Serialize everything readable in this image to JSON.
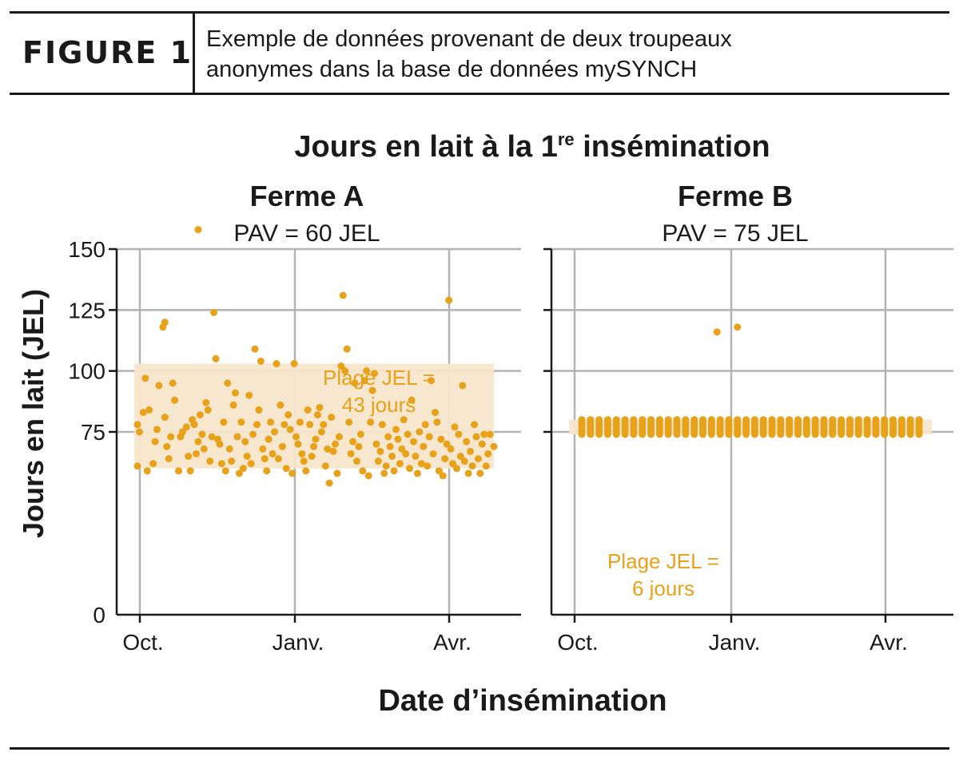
{
  "header": {
    "figure_label": "FIGURE 1",
    "caption_line1": "Exemple de données provenant de deux troupeaux",
    "caption_line2": "anonymes dans la base de données mySYNCH"
  },
  "chart_data": {
    "type": "scatter",
    "title_main": "Jours en lait à la 1",
    "title_sup": "re",
    "title_end": " insémination",
    "ylabel": "Jours en lait (JEL)",
    "xlabel": "Date d’insémination",
    "ylim": [
      0,
      150
    ],
    "yticks": [
      0,
      25,
      50,
      75,
      100,
      125,
      150
    ],
    "ytick_labels": [
      "0",
      "",
      "",
      "75",
      "100",
      "125",
      "150"
    ],
    "x_ticks": [
      "Oct.",
      "Janv.",
      "Avr."
    ],
    "grid": true,
    "point_color": "#e8a21a",
    "band_color": "#f7e6cc",
    "panels": [
      {
        "name": "Ferme A",
        "subtitle": "PAV = 60 JEL",
        "band": [
          60,
          103
        ],
        "annotation_line1": "Plage JEL =",
        "annotation_line2": "43 jours",
        "points": [
          [
            0.0,
            61
          ],
          [
            0.0,
            78
          ],
          [
            0.1,
            75
          ],
          [
            0.3,
            83
          ],
          [
            0.4,
            97
          ],
          [
            0.6,
            84
          ],
          [
            0.9,
            71
          ],
          [
            0.8,
            62
          ],
          [
            0.5,
            59
          ],
          [
            1.0,
            76
          ],
          [
            1.1,
            94
          ],
          [
            1.3,
            118
          ],
          [
            1.4,
            120
          ],
          [
            1.4,
            81
          ],
          [
            1.5,
            69
          ],
          [
            1.6,
            64
          ],
          [
            1.7,
            73
          ],
          [
            1.8,
            95
          ],
          [
            1.9,
            88
          ],
          [
            2.1,
            59
          ],
          [
            2.2,
            73
          ],
          [
            2.3,
            75
          ],
          [
            2.5,
            77
          ],
          [
            2.6,
            65
          ],
          [
            2.7,
            59
          ],
          [
            2.8,
            80
          ],
          [
            2.9,
            78
          ],
          [
            3.0,
            66
          ],
          [
            3.1,
            158
          ],
          [
            3.1,
            71
          ],
          [
            3.2,
            82
          ],
          [
            3.3,
            74
          ],
          [
            3.4,
            68
          ],
          [
            3.5,
            87
          ],
          [
            3.6,
            84
          ],
          [
            3.7,
            63
          ],
          [
            3.8,
            73
          ],
          [
            3.9,
            124
          ],
          [
            4.0,
            105
          ],
          [
            4.1,
            72
          ],
          [
            4.2,
            70
          ],
          [
            4.3,
            62
          ],
          [
            4.4,
            79
          ],
          [
            4.5,
            59
          ],
          [
            4.6,
            95
          ],
          [
            4.7,
            68
          ],
          [
            4.8,
            63
          ],
          [
            4.9,
            86
          ],
          [
            5.0,
            91
          ],
          [
            5.1,
            73
          ],
          [
            5.2,
            58
          ],
          [
            5.3,
            79
          ],
          [
            5.4,
            60
          ],
          [
            5.5,
            71
          ],
          [
            5.6,
            65
          ],
          [
            5.7,
            90
          ],
          [
            5.8,
            62
          ],
          [
            5.9,
            74
          ],
          [
            6.0,
            109
          ],
          [
            6.1,
            78
          ],
          [
            6.2,
            84
          ],
          [
            6.3,
            104
          ],
          [
            6.4,
            68
          ],
          [
            6.5,
            64
          ],
          [
            6.6,
            59
          ],
          [
            6.7,
            72
          ],
          [
            6.8,
            79
          ],
          [
            6.9,
            66
          ],
          [
            7.0,
            75
          ],
          [
            7.1,
            103
          ],
          [
            7.2,
            64
          ],
          [
            7.3,
            86
          ],
          [
            7.4,
            69
          ],
          [
            7.5,
            78
          ],
          [
            7.6,
            60
          ],
          [
            7.7,
            82
          ],
          [
            7.8,
            76
          ],
          [
            7.9,
            58
          ],
          [
            8.0,
            103
          ],
          [
            8.1,
            73
          ],
          [
            8.2,
            70
          ],
          [
            8.3,
            79
          ],
          [
            8.4,
            66
          ],
          [
            8.5,
            63
          ],
          [
            8.6,
            59
          ],
          [
            8.7,
            84
          ],
          [
            8.8,
            78
          ],
          [
            8.9,
            65
          ],
          [
            9.0,
            69
          ],
          [
            9.1,
            72
          ],
          [
            9.2,
            82
          ],
          [
            9.3,
            85
          ],
          [
            9.4,
            75
          ],
          [
            9.5,
            78
          ],
          [
            9.6,
            61
          ],
          [
            9.7,
            68
          ],
          [
            9.8,
            54
          ],
          [
            9.9,
            81
          ],
          [
            10.0,
            67
          ],
          [
            10.1,
            70
          ],
          [
            10.2,
            58
          ],
          [
            10.3,
            73
          ],
          [
            10.4,
            102
          ],
          [
            10.5,
            131
          ],
          [
            10.6,
            100
          ],
          [
            10.7,
            109
          ],
          [
            10.8,
            79
          ],
          [
            10.9,
            66
          ],
          [
            11.0,
            71
          ],
          [
            11.1,
            95
          ],
          [
            11.2,
            63
          ],
          [
            11.3,
            69
          ],
          [
            11.4,
            74
          ],
          [
            11.5,
            59
          ],
          [
            11.6,
            96
          ],
          [
            11.7,
            100
          ],
          [
            11.8,
            57
          ],
          [
            11.9,
            79
          ],
          [
            12.0,
            92
          ],
          [
            12.1,
            99
          ],
          [
            12.2,
            70
          ],
          [
            12.3,
            63
          ],
          [
            12.4,
            67
          ],
          [
            12.5,
            78
          ],
          [
            12.6,
            58
          ],
          [
            12.7,
            61
          ],
          [
            12.8,
            73
          ],
          [
            12.9,
            69
          ],
          [
            13.0,
            65
          ],
          [
            13.1,
            59
          ],
          [
            13.2,
            76
          ],
          [
            13.3,
            72
          ],
          [
            13.4,
            62
          ],
          [
            13.5,
            68
          ],
          [
            13.6,
            80
          ],
          [
            13.7,
            66
          ],
          [
            13.8,
            74
          ],
          [
            13.9,
            60
          ],
          [
            14.0,
            88
          ],
          [
            14.1,
            71
          ],
          [
            14.2,
            65
          ],
          [
            14.3,
            58
          ],
          [
            14.4,
            75
          ],
          [
            14.5,
            62
          ],
          [
            14.6,
            69
          ],
          [
            14.7,
            78
          ],
          [
            14.8,
            61
          ],
          [
            14.9,
            73
          ],
          [
            15.0,
            96
          ],
          [
            15.1,
            66
          ],
          [
            15.2,
            83
          ],
          [
            15.3,
            79
          ],
          [
            15.4,
            59
          ],
          [
            15.5,
            72
          ],
          [
            15.6,
            57
          ],
          [
            15.7,
            64
          ],
          [
            15.8,
            70
          ],
          [
            15.9,
            129
          ],
          [
            16.0,
            68
          ],
          [
            16.1,
            62
          ],
          [
            16.2,
            77
          ],
          [
            16.3,
            60
          ],
          [
            16.4,
            74
          ],
          [
            16.5,
            65
          ],
          [
            16.6,
            94
          ],
          [
            16.7,
            63
          ],
          [
            16.8,
            71
          ],
          [
            16.9,
            58
          ],
          [
            17.0,
            67
          ],
          [
            17.1,
            61
          ],
          [
            17.2,
            78
          ],
          [
            17.3,
            73
          ],
          [
            17.4,
            64
          ],
          [
            17.5,
            58
          ],
          [
            17.6,
            70
          ],
          [
            17.7,
            74
          ],
          [
            17.8,
            61
          ],
          [
            17.9,
            66
          ],
          [
            18.0,
            74
          ],
          [
            18.2,
            69
          ]
        ]
      },
      {
        "name": "Ferme B",
        "subtitle": "PAV = 75 JEL",
        "band": [
          74,
          80
        ],
        "annotation_line1": "Plage JEL =",
        "annotation_line2": "6 jours",
        "outliers": [
          [
            7.3,
            116
          ],
          [
            8.4,
            118
          ]
        ]
      }
    ]
  }
}
